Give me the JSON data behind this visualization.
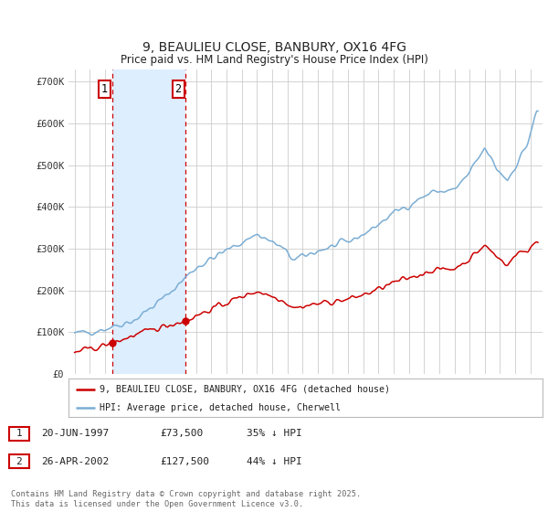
{
  "title": "9, BEAULIEU CLOSE, BANBURY, OX16 4FG",
  "subtitle": "Price paid vs. HM Land Registry's House Price Index (HPI)",
  "legend_line1": "9, BEAULIEU CLOSE, BANBURY, OX16 4FG (detached house)",
  "legend_line2": "HPI: Average price, detached house, Cherwell",
  "annotation1_date": "20-JUN-1997",
  "annotation1_price": "£73,500",
  "annotation1_hpi": "35% ↓ HPI",
  "annotation1_year": 1997.47,
  "annotation1_value": 73500,
  "annotation2_date": "26-APR-2002",
  "annotation2_price": "£127,500",
  "annotation2_hpi": "44% ↓ HPI",
  "annotation2_year": 2002.32,
  "annotation2_value": 127500,
  "footer": "Contains HM Land Registry data © Crown copyright and database right 2025.\nThis data is licensed under the Open Government Licence v3.0.",
  "red_color": "#cc0000",
  "blue_color": "#7aadd4",
  "shade_color": "#ddeeff",
  "background_color": "#ffffff",
  "grid_color": "#cccccc",
  "ylim": [
    0,
    730000
  ],
  "yticks": [
    0,
    100000,
    200000,
    300000,
    400000,
    500000,
    600000,
    700000
  ],
  "ytick_labels": [
    "£0",
    "£100K",
    "£200K",
    "£300K",
    "£400K",
    "£500K",
    "£600K",
    "£700K"
  ],
  "xmin": 1994.6,
  "xmax": 2025.8
}
